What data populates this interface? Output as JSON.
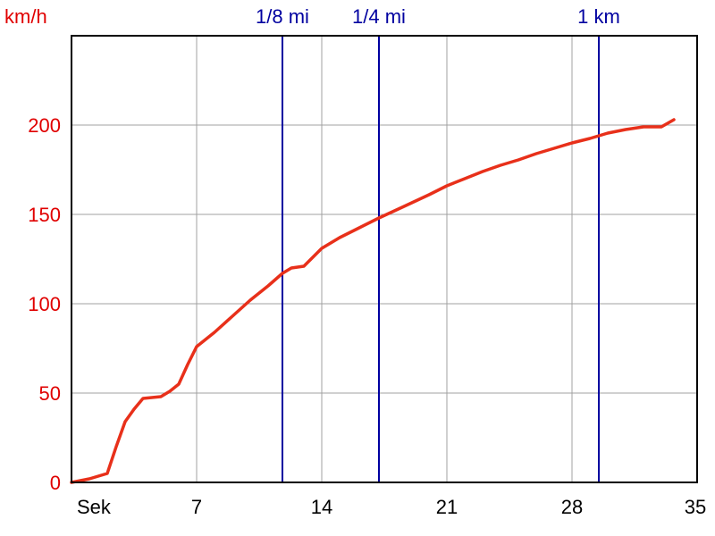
{
  "chart_data": {
    "type": "line",
    "ylabel": "km/h",
    "xlabel": "Sek",
    "xlim": [
      0,
      35
    ],
    "ylim": [
      0,
      250
    ],
    "x_ticks": [
      7,
      14,
      21,
      28,
      35
    ],
    "y_ticks": [
      0,
      50,
      100,
      150,
      200
    ],
    "grid": true,
    "colors": {
      "series": "#e8301a",
      "axis_label": "#e00000",
      "markers": "#0000a0",
      "grid": "#a0a0a0",
      "frame": "#000000"
    },
    "markers": [
      {
        "label": "1/8 mi",
        "x": 11.8
      },
      {
        "label": "1/4 mi",
        "x": 17.2
      },
      {
        "label": "1 km",
        "x": 29.5
      }
    ],
    "series": [
      {
        "x": [
          0,
          0.5,
          1.0,
          1.5,
          2.0,
          2.5,
          3.0,
          3.5,
          4.0,
          4.5,
          5.0,
          5.5,
          6.0,
          6.5,
          7.0,
          7.5,
          8.0,
          9.0,
          10.0,
          11.0,
          11.8,
          12.3,
          13.0,
          14.0,
          15.0,
          16.0,
          17.2,
          18.5,
          20.0,
          21.0,
          22.0,
          23.0,
          24.0,
          25.0,
          26.0,
          27.0,
          28.0,
          29.0,
          30.0,
          31.0,
          32.0,
          33.0,
          33.7
        ],
        "y": [
          0,
          1,
          2,
          3.5,
          5,
          20,
          34,
          41,
          47,
          47.5,
          48,
          51,
          55,
          66,
          76,
          80,
          84,
          93,
          102,
          110,
          117,
          120,
          121,
          131,
          137,
          142,
          148,
          154,
          161,
          166,
          170,
          174,
          177.5,
          180.5,
          184,
          187,
          190,
          192.5,
          195.5,
          197.5,
          199,
          199,
          203
        ]
      }
    ]
  }
}
